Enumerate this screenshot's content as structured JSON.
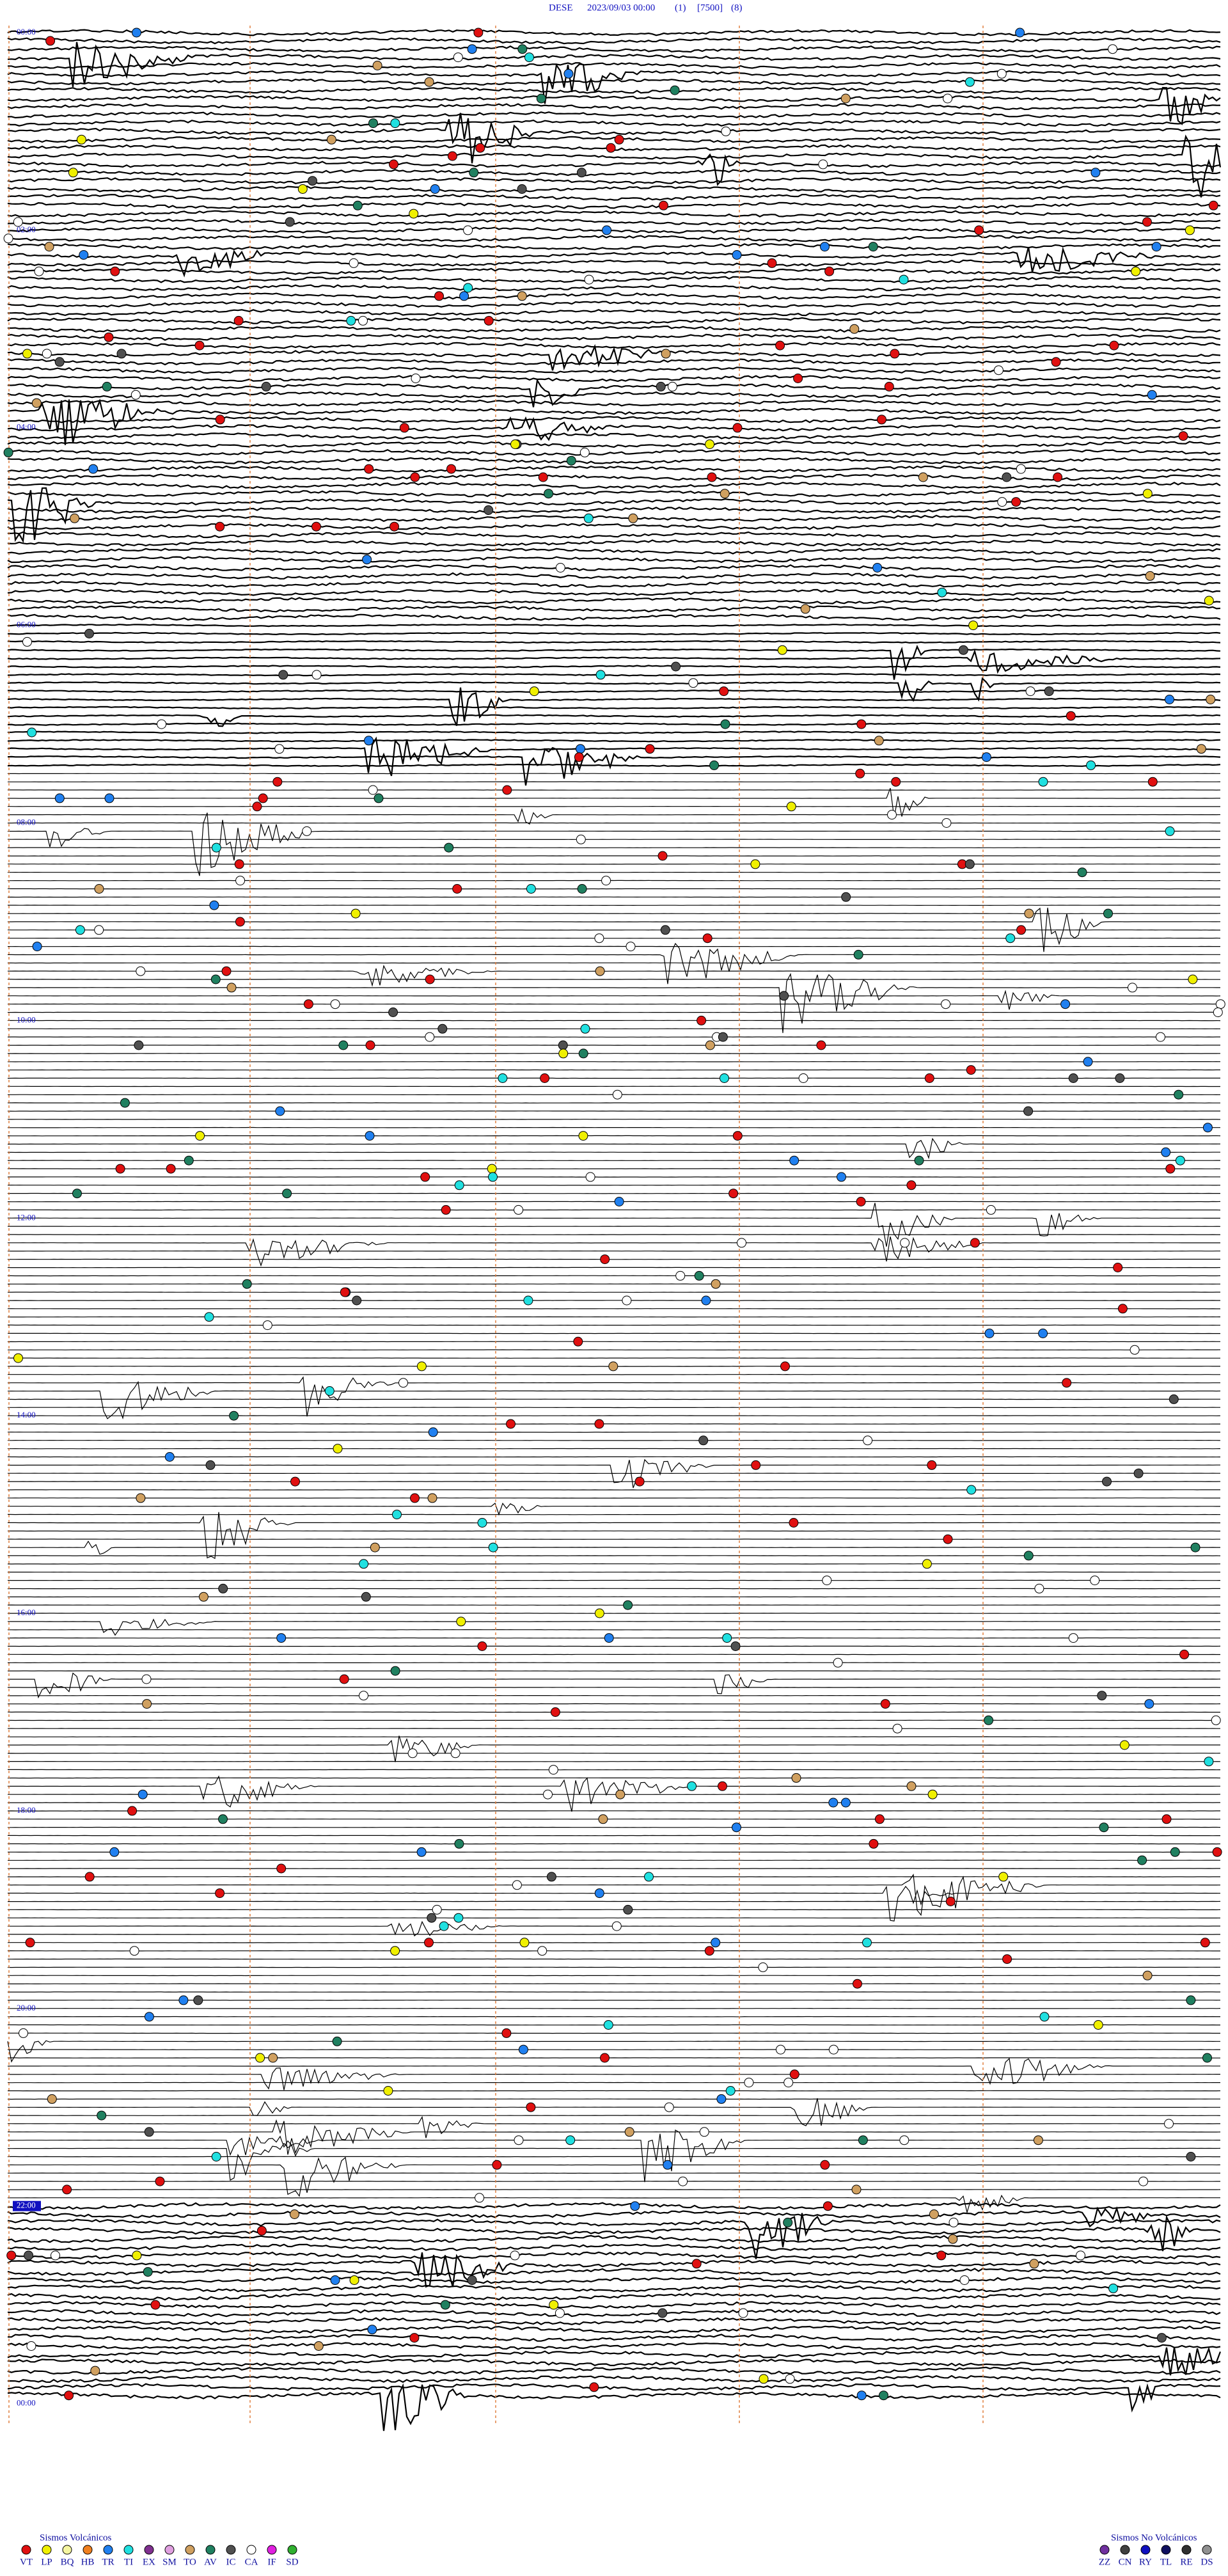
{
  "header": {
    "station": "DESE",
    "datetime": "2023/09/03 00:00",
    "channel": "(1)",
    "scale": "[7500]",
    "speed": "(8)"
  },
  "time_labels": [
    "00:00",
    "02:00",
    "04:00",
    "06:00",
    "08:00",
    "10:00",
    "12:00",
    "14:00",
    "16:00",
    "18:00",
    "20:00",
    "22:00",
    "00:00"
  ],
  "legend_volcanic": {
    "title": "Sismos Volcánicos",
    "items": [
      {
        "code": "VT",
        "color": "#e01010"
      },
      {
        "code": "LP",
        "color": "#f0f000"
      },
      {
        "code": "BQ",
        "color": "#f5f5a0"
      },
      {
        "code": "HB",
        "color": "#f08020"
      },
      {
        "code": "TR",
        "color": "#2080f0"
      },
      {
        "code": "TI",
        "color": "#20e0e0"
      },
      {
        "code": "EX",
        "color": "#803090"
      },
      {
        "code": "SM",
        "color": "#e0a0e0"
      },
      {
        "code": "TO",
        "color": "#d0a060"
      },
      {
        "code": "AV",
        "color": "#208060"
      },
      {
        "code": "IC",
        "color": "#505050"
      },
      {
        "code": "CA",
        "color": "#ffffff"
      },
      {
        "code": "IF",
        "color": "#e020e0"
      },
      {
        "code": "SD",
        "color": "#30b030"
      }
    ]
  },
  "legend_nonvolcanic": {
    "title": "Sismos No Volcánicos",
    "items": [
      {
        "code": "ZZ",
        "color": "#7030a0"
      },
      {
        "code": "CN",
        "color": "#404040"
      },
      {
        "code": "RY",
        "color": "#1010c0"
      },
      {
        "code": "TL",
        "color": "#101060"
      },
      {
        "code": "RE",
        "color": "#303030"
      },
      {
        "code": "DS",
        "color": "#909090"
      }
    ]
  }
}
